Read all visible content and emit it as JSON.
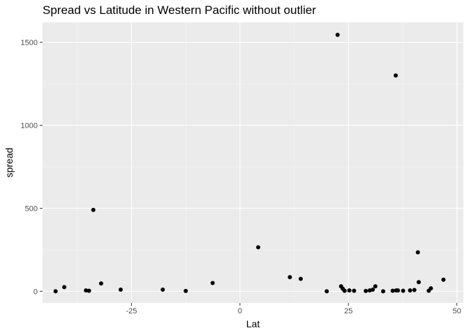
{
  "chart_data": {
    "type": "scatter",
    "title": "Spread vs Latitude in Western Pacific without outlier",
    "xlabel": "Lat",
    "ylabel": "spread",
    "xlim": [
      -45.5,
      51.5
    ],
    "ylim": [
      -70,
      1620
    ],
    "x_ticks": [
      -25,
      0,
      25,
      50
    ],
    "x_tick_labels": [
      "-25",
      "0",
      "25",
      "50"
    ],
    "y_ticks": [
      0,
      500,
      1000,
      1500
    ],
    "y_tick_labels": [
      "0",
      "500",
      "1000",
      "1500"
    ],
    "grid": true,
    "point_color": "#000000",
    "panel_color": "#ebebeb",
    "points": [
      {
        "x": -42.5,
        "y": 0
      },
      {
        "x": -40.5,
        "y": 25
      },
      {
        "x": -35.5,
        "y": 5
      },
      {
        "x": -34.8,
        "y": 3
      },
      {
        "x": -33.8,
        "y": 490
      },
      {
        "x": -32.0,
        "y": 47
      },
      {
        "x": -27.5,
        "y": 10
      },
      {
        "x": -17.8,
        "y": 10
      },
      {
        "x": -12.5,
        "y": 2
      },
      {
        "x": -6.3,
        "y": 50
      },
      {
        "x": 4.2,
        "y": 265
      },
      {
        "x": 11.5,
        "y": 85
      },
      {
        "x": 14.0,
        "y": 75
      },
      {
        "x": 20.0,
        "y": 0
      },
      {
        "x": 22.5,
        "y": 1545
      },
      {
        "x": 23.3,
        "y": 30
      },
      {
        "x": 23.7,
        "y": 15
      },
      {
        "x": 24.1,
        "y": 3
      },
      {
        "x": 25.2,
        "y": 5
      },
      {
        "x": 26.3,
        "y": 3
      },
      {
        "x": 29.0,
        "y": 2
      },
      {
        "x": 29.9,
        "y": 5
      },
      {
        "x": 30.6,
        "y": 10
      },
      {
        "x": 31.2,
        "y": 30
      },
      {
        "x": 33.0,
        "y": 0
      },
      {
        "x": 35.2,
        "y": 3
      },
      {
        "x": 35.9,
        "y": 1300
      },
      {
        "x": 36.0,
        "y": 5
      },
      {
        "x": 36.4,
        "y": 5
      },
      {
        "x": 37.6,
        "y": 3
      },
      {
        "x": 39.2,
        "y": 5
      },
      {
        "x": 40.2,
        "y": 8
      },
      {
        "x": 41.0,
        "y": 235
      },
      {
        "x": 41.2,
        "y": 55
      },
      {
        "x": 43.5,
        "y": 3
      },
      {
        "x": 44.0,
        "y": 18
      },
      {
        "x": 46.9,
        "y": 70
      }
    ]
  }
}
